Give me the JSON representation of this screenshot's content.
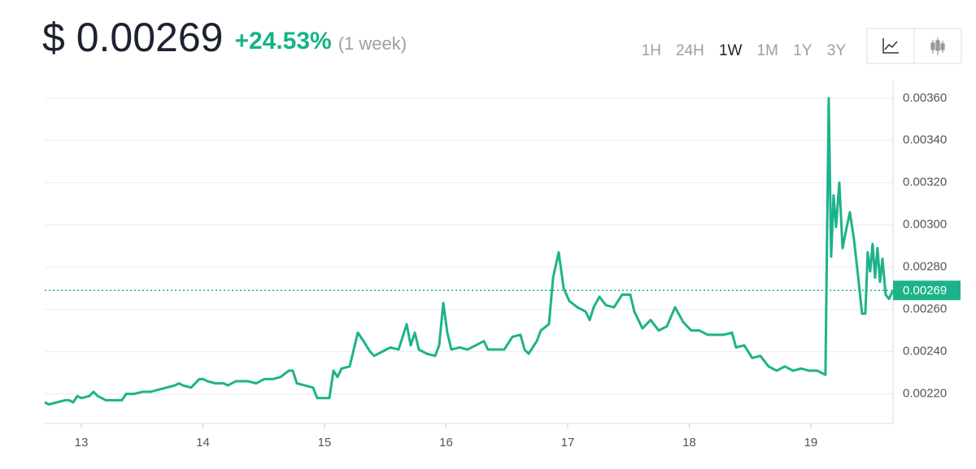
{
  "header": {
    "price": "$ 0.00269",
    "change": "+24.53%",
    "period": "(1 week)"
  },
  "controls": {
    "ranges": [
      "1H",
      "24H",
      "1W",
      "1M",
      "1Y",
      "3Y"
    ],
    "active": "1W"
  },
  "chart_data": {
    "type": "line",
    "x": [
      12.699,
      12.732,
      12.799,
      12.866,
      12.9,
      12.933,
      12.967,
      13.0,
      13.067,
      13.1,
      13.134,
      13.201,
      13.268,
      13.334,
      13.368,
      13.435,
      13.502,
      13.569,
      13.635,
      13.702,
      13.769,
      13.803,
      13.836,
      13.903,
      13.97,
      14.003,
      14.037,
      14.104,
      14.171,
      14.204,
      14.271,
      14.338,
      14.371,
      14.438,
      14.505,
      14.572,
      14.639,
      14.706,
      14.739,
      14.773,
      14.839,
      14.906,
      14.94,
      15.007,
      15.04,
      15.074,
      15.107,
      15.14,
      15.207,
      15.274,
      15.321,
      15.375,
      15.408,
      15.475,
      15.542,
      15.609,
      15.676,
      15.709,
      15.743,
      15.776,
      15.843,
      15.91,
      15.943,
      15.977,
      16.01,
      16.043,
      16.11,
      16.177,
      16.244,
      16.311,
      16.344,
      16.478,
      16.545,
      16.612,
      16.645,
      16.679,
      16.712,
      16.746,
      16.779,
      16.846,
      16.88,
      16.926,
      16.967,
      17.013,
      17.08,
      17.147,
      17.181,
      17.214,
      17.261,
      17.314,
      17.381,
      17.448,
      17.515,
      17.548,
      17.615,
      17.682,
      17.749,
      17.816,
      17.883,
      17.95,
      18.017,
      18.084,
      18.151,
      18.217,
      18.284,
      18.351,
      18.385,
      18.452,
      18.518,
      18.585,
      18.652,
      18.719,
      18.786,
      18.853,
      18.92,
      18.987,
      19.054,
      19.12,
      19.147,
      19.167,
      19.187,
      19.207,
      19.234,
      19.261,
      19.288,
      19.321,
      19.355,
      19.388,
      19.421,
      19.448,
      19.468,
      19.488,
      19.508,
      19.528,
      19.548,
      19.569,
      19.589,
      19.615,
      19.642,
      19.676
    ],
    "series": [
      {
        "color": "#1db38a",
        "values": [
          0.00216,
          0.00215,
          0.00216,
          0.00217,
          0.00217,
          0.00216,
          0.00219,
          0.00218,
          0.00219,
          0.00221,
          0.00219,
          0.00217,
          0.00217,
          0.00217,
          0.0022,
          0.0022,
          0.00221,
          0.00221,
          0.00222,
          0.00223,
          0.00224,
          0.00225,
          0.00224,
          0.00223,
          0.00227,
          0.00227,
          0.00226,
          0.00225,
          0.00225,
          0.00224,
          0.00226,
          0.00226,
          0.00226,
          0.00225,
          0.00227,
          0.00227,
          0.00228,
          0.00231,
          0.00231,
          0.00225,
          0.00224,
          0.00223,
          0.00218,
          0.00218,
          0.00218,
          0.00231,
          0.00228,
          0.00232,
          0.00233,
          0.00249,
          0.00245,
          0.0024,
          0.00238,
          0.0024,
          0.00242,
          0.00241,
          0.00253,
          0.00243,
          0.00249,
          0.00241,
          0.00239,
          0.00238,
          0.00243,
          0.00263,
          0.00249,
          0.00241,
          0.00242,
          0.00241,
          0.00243,
          0.00245,
          0.00241,
          0.00241,
          0.00247,
          0.00248,
          0.00241,
          0.00239,
          0.00242,
          0.00245,
          0.0025,
          0.00253,
          0.00275,
          0.00287,
          0.0027,
          0.00264,
          0.00261,
          0.00259,
          0.00255,
          0.00261,
          0.00266,
          0.00262,
          0.00261,
          0.00267,
          0.00267,
          0.00259,
          0.00251,
          0.00255,
          0.0025,
          0.00252,
          0.00261,
          0.00254,
          0.0025,
          0.0025,
          0.00248,
          0.00248,
          0.00248,
          0.00249,
          0.00242,
          0.00243,
          0.00237,
          0.00238,
          0.00233,
          0.00231,
          0.00233,
          0.00231,
          0.00232,
          0.00231,
          0.00231,
          0.00229,
          0.0036,
          0.00285,
          0.00314,
          0.00299,
          0.0032,
          0.00289,
          0.00297,
          0.00306,
          0.00293,
          0.00276,
          0.00258,
          0.00258,
          0.00287,
          0.00278,
          0.00291,
          0.00275,
          0.00289,
          0.00273,
          0.00284,
          0.00267,
          0.00265,
          0.00269
        ]
      }
    ],
    "current": {
      "value": 0.00269,
      "label": "0.00269"
    },
    "xlim": [
      12.699,
      19.676
    ],
    "xticks": [
      13,
      14,
      15,
      16,
      17,
      18,
      19
    ],
    "ylim": [
      0.00206,
      0.00368
    ],
    "yticks": [
      {
        "value": 0.0022,
        "label": "0.00220"
      },
      {
        "value": 0.0024,
        "label": "0.00240"
      },
      {
        "value": 0.0026,
        "label": "0.00260"
      },
      {
        "value": 0.0028,
        "label": "0.00280"
      },
      {
        "value": 0.003,
        "label": "0.00300"
      },
      {
        "value": 0.0032,
        "label": "0.00320"
      },
      {
        "value": 0.0034,
        "label": "0.00340"
      },
      {
        "value": 0.0036,
        "label": "0.00360"
      }
    ],
    "grid": true
  }
}
